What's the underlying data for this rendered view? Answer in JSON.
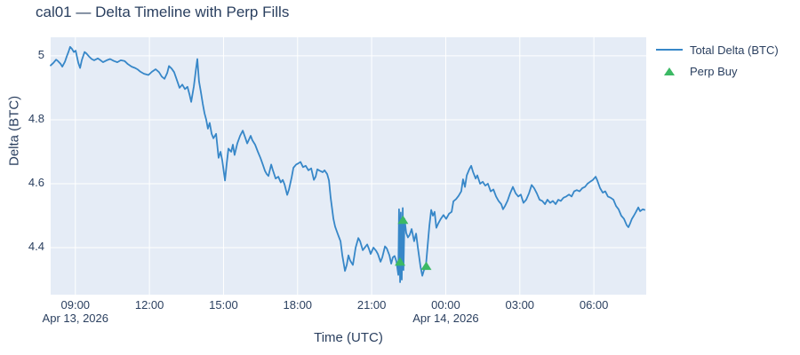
{
  "colors": {
    "text": "#2a3f5f",
    "paper_bg": "#ffffff",
    "plot_bg": "#e5ecf6",
    "grid": "#ffffff",
    "line": "#3787c8",
    "marker": "#3cb964"
  },
  "chart_data": {
    "type": "line",
    "title": "cal01 — Delta Timeline with Perp Fills",
    "xlabel": "Time (UTC)",
    "ylabel": "Delta (BTC)",
    "legend_position": "top-right",
    "grid": true,
    "x_unit": "hours since 2026-04-13 08:00 UTC",
    "x_range": [
      0,
      24.12
    ],
    "y_range": [
      4.253,
      5.058
    ],
    "x_ticks": [
      {
        "h": 1,
        "label": "09:00",
        "date": "Apr 13, 2026"
      },
      {
        "h": 4,
        "label": "12:00"
      },
      {
        "h": 7,
        "label": "15:00"
      },
      {
        "h": 10,
        "label": "18:00"
      },
      {
        "h": 13,
        "label": "21:00"
      },
      {
        "h": 16,
        "label": "00:00",
        "date": "Apr 14, 2026"
      },
      {
        "h": 19,
        "label": "03:00"
      },
      {
        "h": 22,
        "label": "06:00"
      }
    ],
    "y_ticks": [
      {
        "v": 4.4,
        "label": "4.4"
      },
      {
        "v": 4.6,
        "label": "4.6"
      },
      {
        "v": 4.8,
        "label": "4.8"
      },
      {
        "v": 5.0,
        "label": "5"
      }
    ],
    "series": [
      {
        "name": "Total Delta (BTC)",
        "type": "line",
        "color": "#3787c8",
        "x": [
          0,
          0.11,
          0.22,
          0.29,
          0.4,
          0.47,
          0.58,
          0.65,
          0.72,
          0.79,
          0.86,
          0.94,
          1.01,
          1.12,
          1.19,
          1.26,
          1.37,
          1.44,
          1.55,
          1.66,
          1.76,
          1.91,
          2.02,
          2.12,
          2.27,
          2.41,
          2.56,
          2.7,
          2.84,
          2.99,
          3.13,
          3.28,
          3.42,
          3.53,
          3.64,
          3.78,
          3.96,
          4.1,
          4.25,
          4.39,
          4.5,
          4.61,
          4.72,
          4.79,
          4.9,
          5.0,
          5.11,
          5.22,
          5.33,
          5.44,
          5.54,
          5.62,
          5.69,
          5.8,
          5.87,
          5.94,
          6.01,
          6.08,
          6.16,
          6.23,
          6.3,
          6.37,
          6.44,
          6.52,
          6.59,
          6.7,
          6.8,
          6.88,
          6.95,
          7.06,
          7.13,
          7.2,
          7.31,
          7.38,
          7.45,
          7.56,
          7.67,
          7.78,
          7.88,
          7.96,
          8.1,
          8.17,
          8.28,
          8.39,
          8.5,
          8.6,
          8.68,
          8.75,
          8.82,
          8.93,
          9.0,
          9.11,
          9.22,
          9.32,
          9.4,
          9.47,
          9.58,
          9.65,
          9.76,
          9.83,
          9.94,
          10.04,
          10.12,
          10.22,
          10.33,
          10.44,
          10.55,
          10.66,
          10.73,
          10.8,
          10.91,
          11.02,
          11.09,
          11.2,
          11.27,
          11.34,
          11.45,
          11.52,
          11.63,
          11.74,
          11.81,
          11.92,
          11.99,
          12.06,
          12.13,
          12.24,
          12.35,
          12.46,
          12.53,
          12.64,
          12.74,
          12.82,
          12.89,
          12.96,
          13.07,
          13.18,
          13.25,
          13.36,
          13.43,
          13.54,
          13.61,
          13.72,
          13.79,
          13.86,
          13.93,
          14.0,
          14.08,
          14.11,
          14.15,
          14.18,
          14.22,
          14.26,
          14.29,
          14.33,
          14.4,
          14.47,
          14.54,
          14.62,
          14.72,
          14.8,
          14.87,
          14.98,
          15.05,
          15.12,
          15.19,
          15.26,
          15.34,
          15.41,
          15.48,
          15.55,
          15.62,
          15.7,
          15.8,
          15.91,
          16.02,
          16.13,
          16.24,
          16.31,
          16.42,
          16.52,
          16.63,
          16.7,
          16.78,
          16.85,
          16.96,
          17.03,
          17.1,
          17.21,
          17.28,
          17.39,
          17.5,
          17.6,
          17.71,
          17.82,
          17.93,
          18.04,
          18.14,
          18.25,
          18.32,
          18.4,
          18.5,
          18.61,
          18.72,
          18.83,
          18.94,
          19.04,
          19.15,
          19.26,
          19.37,
          19.48,
          19.58,
          19.69,
          19.8,
          19.91,
          20.02,
          20.12,
          20.23,
          20.34,
          20.45,
          20.56,
          20.66,
          20.77,
          20.88,
          20.99,
          21.1,
          21.2,
          21.31,
          21.42,
          21.53,
          21.64,
          21.74,
          21.85,
          21.96,
          22.07,
          22.14,
          22.25,
          22.36,
          22.46,
          22.57,
          22.68,
          22.79,
          22.9,
          23.0,
          23.11,
          23.22,
          23.33,
          23.4,
          23.47,
          23.54,
          23.62,
          23.69,
          23.8,
          23.87,
          23.98,
          24.05
        ],
        "y": [
          4.97,
          4.978,
          4.988,
          4.984,
          4.975,
          4.966,
          4.982,
          4.998,
          5.012,
          5.028,
          5.022,
          5.012,
          5.016,
          4.978,
          4.962,
          4.986,
          5.012,
          5.008,
          4.998,
          4.99,
          4.986,
          4.992,
          4.986,
          4.98,
          4.986,
          4.99,
          4.984,
          4.98,
          4.986,
          4.984,
          4.974,
          4.966,
          4.962,
          4.957,
          4.95,
          4.944,
          4.94,
          4.95,
          4.958,
          4.949,
          4.935,
          4.928,
          4.946,
          4.968,
          4.96,
          4.949,
          4.925,
          4.9,
          4.91,
          4.896,
          4.903,
          4.88,
          4.856,
          4.905,
          4.95,
          4.99,
          4.92,
          4.888,
          4.85,
          4.82,
          4.8,
          4.772,
          4.79,
          4.756,
          4.742,
          4.756,
          4.681,
          4.7,
          4.672,
          4.61,
          4.664,
          4.71,
          4.7,
          4.722,
          4.69,
          4.726,
          4.75,
          4.766,
          4.744,
          4.726,
          4.75,
          4.736,
          4.722,
          4.7,
          4.68,
          4.658,
          4.64,
          4.63,
          4.624,
          4.66,
          4.642,
          4.616,
          4.622,
          4.604,
          4.612,
          4.598,
          4.565,
          4.582,
          4.62,
          4.65,
          4.66,
          4.664,
          4.668,
          4.652,
          4.656,
          4.642,
          4.648,
          4.612,
          4.622,
          4.645,
          4.64,
          4.636,
          4.642,
          4.63,
          4.61,
          4.556,
          4.49,
          4.466,
          4.442,
          4.42,
          4.376,
          4.327,
          4.346,
          4.376,
          4.36,
          4.346,
          4.4,
          4.43,
          4.42,
          4.392,
          4.402,
          4.41,
          4.396,
          4.38,
          4.4,
          4.39,
          4.38,
          4.356,
          4.37,
          4.404,
          4.398,
          4.376,
          4.35,
          4.37,
          4.374,
          4.358,
          4.315,
          4.52,
          4.292,
          4.51,
          4.3,
          4.524,
          4.33,
          4.49,
          4.446,
          4.432,
          4.44,
          4.458,
          4.42,
          4.444,
          4.4,
          4.34,
          4.312,
          4.33,
          4.336,
          4.4,
          4.47,
          4.518,
          4.5,
          4.512,
          4.462,
          4.476,
          4.49,
          4.502,
          4.49,
          4.506,
          4.512,
          4.545,
          4.552,
          4.562,
          4.576,
          4.614,
          4.59,
          4.626,
          4.646,
          4.656,
          4.638,
          4.616,
          4.626,
          4.6,
          4.606,
          4.594,
          4.6,
          4.576,
          4.582,
          4.56,
          4.546,
          4.536,
          4.52,
          4.53,
          4.546,
          4.57,
          4.59,
          4.57,
          4.56,
          4.566,
          4.54,
          4.55,
          4.57,
          4.596,
          4.586,
          4.57,
          4.55,
          4.546,
          4.536,
          4.55,
          4.54,
          4.546,
          4.536,
          4.55,
          4.546,
          4.556,
          4.56,
          4.566,
          4.56,
          4.576,
          4.58,
          4.576,
          4.586,
          4.59,
          4.6,
          4.606,
          4.612,
          4.622,
          4.61,
          4.586,
          4.572,
          4.576,
          4.56,
          4.556,
          4.55,
          4.53,
          4.52,
          4.5,
          4.49,
          4.47,
          4.464,
          4.476,
          4.49,
          4.5,
          4.51,
          4.526,
          4.514,
          4.52,
          4.518
        ]
      },
      {
        "name": "Perp Buy",
        "type": "scatter",
        "marker": "triangle-up",
        "color": "#3cb964",
        "x": [
          14.15,
          14.27,
          15.21
        ],
        "y": [
          4.356,
          4.487,
          4.343
        ]
      }
    ]
  }
}
